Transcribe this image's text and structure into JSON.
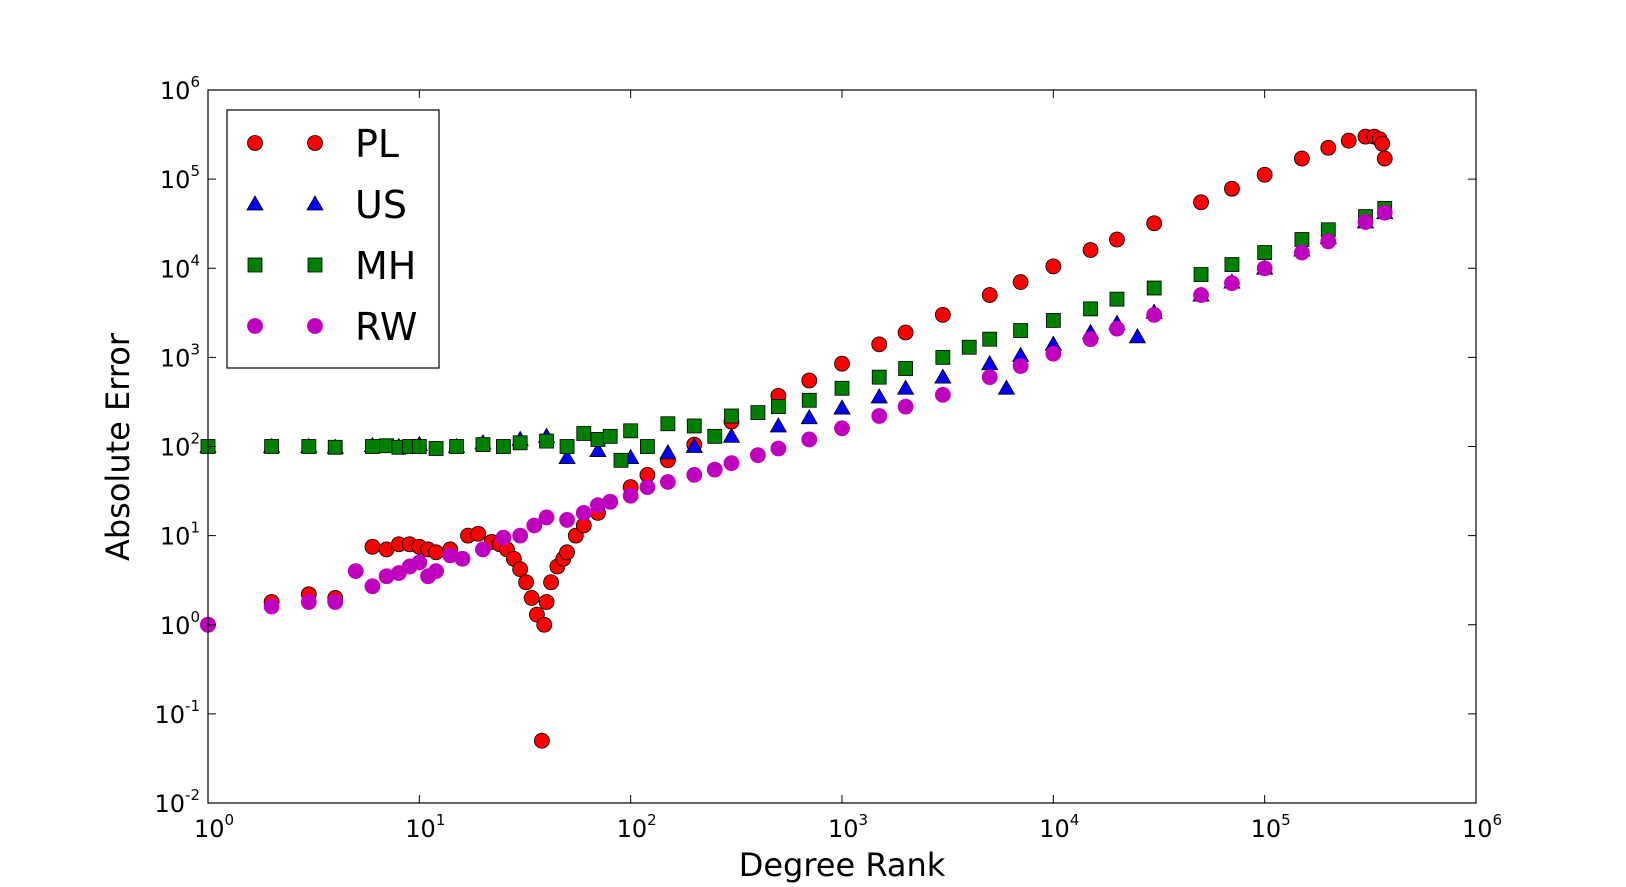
{
  "chart_data": {
    "type": "scatter",
    "title": "",
    "xlabel": "Degree Rank",
    "ylabel": "Absolute Error",
    "xscale": "log",
    "yscale": "log",
    "xlim": [
      1,
      1000000
    ],
    "ylim": [
      0.01,
      1000000
    ],
    "x_ticks": [
      {
        "base": "10",
        "exp": "0"
      },
      {
        "base": "10",
        "exp": "1"
      },
      {
        "base": "10",
        "exp": "2"
      },
      {
        "base": "10",
        "exp": "3"
      },
      {
        "base": "10",
        "exp": "4"
      },
      {
        "base": "10",
        "exp": "5"
      },
      {
        "base": "10",
        "exp": "6"
      }
    ],
    "y_ticks": [
      {
        "base": "10",
        "exp": "-2"
      },
      {
        "base": "10",
        "exp": "-1"
      },
      {
        "base": "10",
        "exp": "0"
      },
      {
        "base": "10",
        "exp": "1"
      },
      {
        "base": "10",
        "exp": "2"
      },
      {
        "base": "10",
        "exp": "3"
      },
      {
        "base": "10",
        "exp": "4"
      },
      {
        "base": "10",
        "exp": "5"
      },
      {
        "base": "10",
        "exp": "6"
      }
    ],
    "grid": false,
    "legend": {
      "position": "top-left"
    },
    "series": [
      {
        "name": "PL",
        "marker": "circle",
        "color": "#ff0000",
        "points": [
          [
            1,
            1.0
          ],
          [
            2,
            1.8
          ],
          [
            3,
            2.2
          ],
          [
            4,
            2.0
          ],
          [
            6,
            7.5
          ],
          [
            7,
            7.0
          ],
          [
            8,
            8.0
          ],
          [
            9,
            8.0
          ],
          [
            10,
            7.5
          ],
          [
            11,
            7.0
          ],
          [
            12,
            6.5
          ],
          [
            14,
            7.0
          ],
          [
            17,
            10.0
          ],
          [
            19,
            10.5
          ],
          [
            22,
            8.5
          ],
          [
            24,
            8.0
          ],
          [
            26,
            7.0
          ],
          [
            28,
            5.5
          ],
          [
            30,
            4.2
          ],
          [
            32,
            3.0
          ],
          [
            34,
            2.0
          ],
          [
            36,
            1.3
          ],
          [
            38,
            0.05
          ],
          [
            39,
            1.0
          ],
          [
            40,
            1.8
          ],
          [
            42,
            3.0
          ],
          [
            45,
            4.5
          ],
          [
            48,
            5.5
          ],
          [
            50,
            6.5
          ],
          [
            55,
            10.0
          ],
          [
            60,
            13.0
          ],
          [
            70,
            18.0
          ],
          [
            80,
            24.0
          ],
          [
            100,
            35.0
          ],
          [
            120,
            48.0
          ],
          [
            150,
            70.0
          ],
          [
            200,
            105.0
          ],
          [
            300,
            190.0
          ],
          [
            500,
            370.0
          ],
          [
            700,
            550.0
          ],
          [
            1000,
            850.0
          ],
          [
            1500,
            1400.0
          ],
          [
            2000,
            1900.0
          ],
          [
            3000,
            3000.0
          ],
          [
            5000,
            5000.0
          ],
          [
            7000,
            7000.0
          ],
          [
            10000,
            10500.0
          ],
          [
            15000,
            16000.0
          ],
          [
            20000,
            21000.0
          ],
          [
            30000,
            32000.0
          ],
          [
            50000,
            55000.0
          ],
          [
            70000,
            78000.0
          ],
          [
            100000,
            112000.0
          ],
          [
            150000,
            170000.0
          ],
          [
            200000,
            225000.0
          ],
          [
            250000,
            270000.0
          ],
          [
            300000,
            300000.0
          ],
          [
            330000,
            300000.0
          ],
          [
            350000,
            280000.0
          ],
          [
            360000,
            250000.0
          ],
          [
            370000,
            170000.0
          ]
        ]
      },
      {
        "name": "US",
        "marker": "triangle",
        "color": "#0000ff",
        "points": [
          [
            1,
            100.0
          ],
          [
            2,
            100.0
          ],
          [
            3,
            100.0
          ],
          [
            4,
            98.0
          ],
          [
            6,
            102.0
          ],
          [
            8,
            100.0
          ],
          [
            10,
            105.0
          ],
          [
            15,
            100.0
          ],
          [
            20,
            110.0
          ],
          [
            30,
            120.0
          ],
          [
            40,
            130.0
          ],
          [
            50,
            75.0
          ],
          [
            70,
            90.0
          ],
          [
            100,
            75.0
          ],
          [
            150,
            85.0
          ],
          [
            200,
            100.0
          ],
          [
            300,
            130.0
          ],
          [
            500,
            170.0
          ],
          [
            700,
            210.0
          ],
          [
            1000,
            270.0
          ],
          [
            1500,
            360.0
          ],
          [
            2000,
            450.0
          ],
          [
            3000,
            600.0
          ],
          [
            5000,
            850.0
          ],
          [
            6000,
            450.0
          ],
          [
            7000,
            1050.0
          ],
          [
            10000,
            1400.0
          ],
          [
            15000,
            1900.0
          ],
          [
            20000,
            2400.0
          ],
          [
            25000,
            1700.0
          ],
          [
            30000,
            3200.0
          ],
          [
            50000,
            5000.0
          ],
          [
            70000,
            7000.0
          ],
          [
            100000,
            10000.0
          ],
          [
            150000,
            16000.0
          ],
          [
            200000,
            22000.0
          ],
          [
            300000,
            33000.0
          ],
          [
            370000,
            42000.0
          ]
        ]
      },
      {
        "name": "MH",
        "marker": "square",
        "color": "#008000",
        "points": [
          [
            1,
            100.0
          ],
          [
            2,
            100.0
          ],
          [
            3,
            100.0
          ],
          [
            4,
            98.0
          ],
          [
            6,
            100.0
          ],
          [
            7,
            102.0
          ],
          [
            8,
            98.0
          ],
          [
            9,
            100.0
          ],
          [
            10,
            100.0
          ],
          [
            12,
            95.0
          ],
          [
            15,
            100.0
          ],
          [
            20,
            105.0
          ],
          [
            25,
            100.0
          ],
          [
            30,
            110.0
          ],
          [
            40,
            115.0
          ],
          [
            50,
            100.0
          ],
          [
            60,
            140.0
          ],
          [
            70,
            120.0
          ],
          [
            80,
            130.0
          ],
          [
            90,
            70.0
          ],
          [
            100,
            150.0
          ],
          [
            120,
            100.0
          ],
          [
            150,
            180.0
          ],
          [
            200,
            170.0
          ],
          [
            250,
            130.0
          ],
          [
            300,
            220.0
          ],
          [
            400,
            240.0
          ],
          [
            500,
            280.0
          ],
          [
            700,
            330.0
          ],
          [
            1000,
            450.0
          ],
          [
            1500,
            600.0
          ],
          [
            2000,
            750.0
          ],
          [
            3000,
            1000.0
          ],
          [
            4000,
            1300.0
          ],
          [
            5000,
            1600.0
          ],
          [
            7000,
            2000.0
          ],
          [
            10000,
            2600.0
          ],
          [
            15000,
            3500.0
          ],
          [
            20000,
            4500.0
          ],
          [
            30000,
            6000.0
          ],
          [
            50000,
            8500.0
          ],
          [
            70000,
            11000.0
          ],
          [
            100000,
            15000.0
          ],
          [
            150000,
            21000.0
          ],
          [
            200000,
            27000.0
          ],
          [
            300000,
            38000.0
          ],
          [
            370000,
            47000.0
          ]
        ]
      },
      {
        "name": "RW",
        "marker": "circle",
        "color": "#bf00bf",
        "points": [
          [
            1,
            1.0
          ],
          [
            2,
            1.6
          ],
          [
            3,
            1.8
          ],
          [
            4,
            1.8
          ],
          [
            5,
            4.0
          ],
          [
            6,
            2.7
          ],
          [
            7,
            3.5
          ],
          [
            8,
            3.8
          ],
          [
            9,
            4.5
          ],
          [
            10,
            5.0
          ],
          [
            11,
            3.5
          ],
          [
            12,
            4.0
          ],
          [
            14,
            6.0
          ],
          [
            16,
            5.5
          ],
          [
            20,
            7.0
          ],
          [
            25,
            9.5
          ],
          [
            30,
            10.0
          ],
          [
            35,
            13.0
          ],
          [
            40,
            16.0
          ],
          [
            50,
            15.0
          ],
          [
            60,
            18.0
          ],
          [
            70,
            22.0
          ],
          [
            80,
            24.0
          ],
          [
            100,
            28.0
          ],
          [
            120,
            35.0
          ],
          [
            150,
            40.0
          ],
          [
            200,
            48.0
          ],
          [
            250,
            55.0
          ],
          [
            300,
            65.0
          ],
          [
            400,
            80.0
          ],
          [
            500,
            95.0
          ],
          [
            700,
            120.0
          ],
          [
            1000,
            160.0
          ],
          [
            1500,
            220.0
          ],
          [
            2000,
            280.0
          ],
          [
            3000,
            380.0
          ],
          [
            5000,
            600.0
          ],
          [
            7000,
            800.0
          ],
          [
            10000,
            1100.0
          ],
          [
            15000,
            1600.0
          ],
          [
            20000,
            2100.0
          ],
          [
            30000,
            3000.0
          ],
          [
            50000,
            5000.0
          ],
          [
            70000,
            6800.0
          ],
          [
            100000,
            10000.0
          ],
          [
            150000,
            15000.0
          ],
          [
            200000,
            20000.0
          ],
          [
            300000,
            33000.0
          ],
          [
            370000,
            42000.0
          ]
        ]
      }
    ]
  }
}
